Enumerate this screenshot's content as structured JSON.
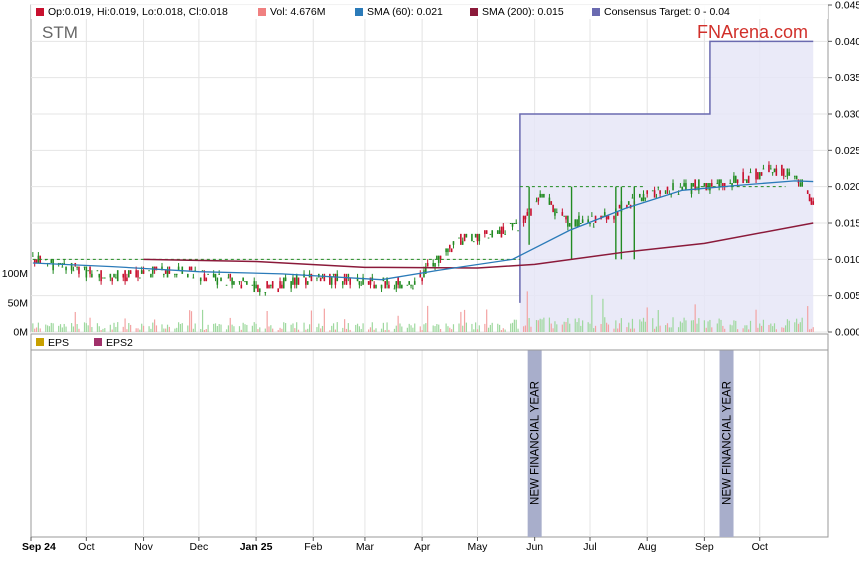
{
  "colors": {
    "up": "#228B22",
    "down": "#C8102E",
    "sma60": "#2B7BB9",
    "sma200": "#8B1A3A",
    "consensus_line": "#6A6AB0",
    "consensus_fill": "#E6E6F7",
    "brand": "#D1302A",
    "financial_year_band": "#A8AECB"
  },
  "chart_data": [
    {
      "type": "candlestick",
      "ticker": "STM",
      "brand": "FNArena.com",
      "legend": [
        {
          "name": "ohlc",
          "label": "Op:0.019, Hi:0.019, Lo:0.018, Cl:0.018",
          "color": "#C8102E"
        },
        {
          "name": "vol",
          "label": "Vol: 4.676M",
          "color": "#F08080"
        },
        {
          "name": "sma60",
          "label": "SMA (60): 0.021",
          "color": "#2B7BB9"
        },
        {
          "name": "sma200",
          "label": "SMA (200): 0.015",
          "color": "#8B1A3A"
        },
        {
          "name": "consensus",
          "label": "Consensus Target: 0 - 0.04",
          "color": "#6A6AB0"
        }
      ],
      "x_labels": [
        "Sep 24",
        "Oct",
        "Nov",
        "Dec",
        "Jan 25",
        "Feb",
        "Mar",
        "Apr",
        "May",
        "Jun",
        "Jul",
        "Aug",
        "Sep",
        "Oct"
      ],
      "bold_x_labels": [
        "Sep 24",
        "Jan 25"
      ],
      "ylim": [
        0,
        0.045
      ],
      "y_ticks": [
        "0.000",
        "0.005",
        "0.010",
        "0.015",
        "0.020",
        "0.025",
        "0.030",
        "0.035",
        "0.040",
        "0.045"
      ],
      "volume_ticks": [
        "0M",
        "50M",
        "100M"
      ],
      "price_anchors": [
        [
          "2024-09-02",
          0.01
        ],
        [
          "2024-09-20",
          0.009
        ],
        [
          "2024-10-15",
          0.0075
        ],
        [
          "2024-11-10",
          0.0085
        ],
        [
          "2024-12-05",
          0.0078
        ],
        [
          "2025-01-05",
          0.006
        ],
        [
          "2025-02-01",
          0.0075
        ],
        [
          "2025-03-01",
          0.007
        ],
        [
          "2025-03-28",
          0.0065
        ],
        [
          "2025-04-05",
          0.009
        ],
        [
          "2025-04-20",
          0.0125
        ],
        [
          "2025-05-10",
          0.0135
        ],
        [
          "2025-05-25",
          0.015
        ],
        [
          "2025-06-05",
          0.0185
        ],
        [
          "2025-06-20",
          0.015
        ],
        [
          "2025-07-10",
          0.0155
        ],
        [
          "2025-07-20",
          0.0175
        ],
        [
          "2025-08-10",
          0.0195
        ],
        [
          "2025-09-10",
          0.0205
        ],
        [
          "2025-10-10",
          0.0225
        ],
        [
          "2025-10-20",
          0.0215
        ],
        [
          "2025-10-30",
          0.018
        ]
      ],
      "sma60": [
        [
          "2024-09-02",
          0.0095
        ],
        [
          "2024-10-15",
          0.009
        ],
        [
          "2024-12-01",
          0.0083
        ],
        [
          "2025-01-15",
          0.008
        ],
        [
          "2025-03-10",
          0.0072
        ],
        [
          "2025-04-10",
          0.0085
        ],
        [
          "2025-05-20",
          0.01
        ],
        [
          "2025-06-20",
          0.014
        ],
        [
          "2025-07-20",
          0.017
        ],
        [
          "2025-08-20",
          0.0195
        ],
        [
          "2025-09-20",
          0.0202
        ],
        [
          "2025-10-20",
          0.0208
        ],
        [
          "2025-10-30",
          0.0207
        ]
      ],
      "sma200": [
        [
          "2024-11-01",
          0.01
        ],
        [
          "2025-01-01",
          0.0097
        ],
        [
          "2025-03-01",
          0.0089
        ],
        [
          "2025-05-01",
          0.0088
        ],
        [
          "2025-06-01",
          0.0093
        ],
        [
          "2025-07-20",
          0.011
        ],
        [
          "2025-09-01",
          0.0122
        ],
        [
          "2025-10-30",
          0.015
        ]
      ],
      "consensus_target": [
        [
          "2025-05-24",
          0.004
        ],
        [
          "2025-05-24",
          0.03
        ],
        [
          "2025-09-04",
          0.03
        ],
        [
          "2025-09-04",
          0.04
        ],
        [
          "2025-10-30",
          0.04
        ]
      ],
      "consensus_range": [
        0,
        0.04
      ],
      "volume_max_m": 120
    },
    {
      "type": "bar",
      "legend": [
        {
          "name": "eps",
          "label": "EPS",
          "color": "#C8A000"
        },
        {
          "name": "eps2",
          "label": "EPS2",
          "color": "#A0306A"
        }
      ],
      "annotations": [
        {
          "label": "NEW FINANCIAL YEAR",
          "date": "2025-06-01"
        },
        {
          "label": "NEW FINANCIAL YEAR",
          "date": "2025-09-13"
        }
      ]
    }
  ]
}
